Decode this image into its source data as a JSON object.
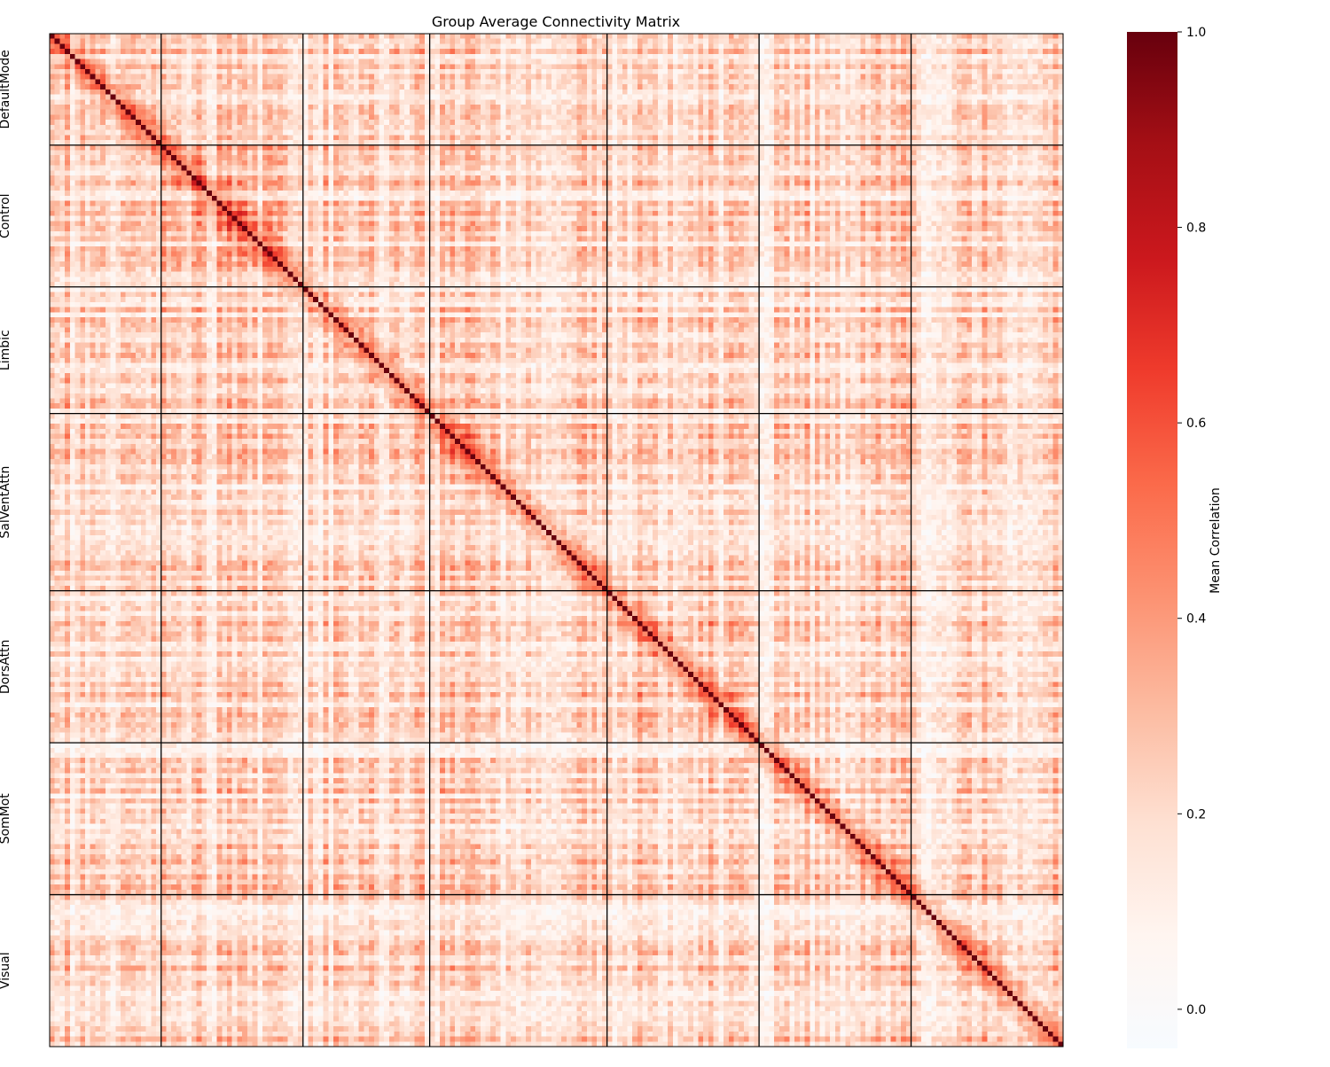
{
  "chart_data": {
    "type": "heatmap",
    "title": "Group Average Connectivity Matrix",
    "colorbar": {
      "label": "Mean Correlation",
      "vmin": -0.04,
      "vmax": 1.0,
      "ticks": [
        0.0,
        0.2,
        0.4,
        0.6,
        0.8,
        1.0
      ],
      "tick_labels": [
        "0.0",
        "0.2",
        "0.4",
        "0.6",
        "0.8",
        "1.0"
      ],
      "colormap": "Reds",
      "colormap_stops": [
        "#f7fbff",
        "#fff5f0",
        "#fee0d2",
        "#fcbba1",
        "#fc9272",
        "#fb6a4a",
        "#ef3b2c",
        "#cb181d",
        "#a50f15",
        "#67000d"
      ]
    },
    "matrix_size": 200,
    "diagonal_value": 1.0,
    "networks": [
      {
        "name": "DefaultMode",
        "start": 0,
        "count": 22,
        "within_mean": 0.35
      },
      {
        "name": "Control",
        "start": 22,
        "count": 28,
        "within_mean": 0.36
      },
      {
        "name": "Limbic",
        "start": 50,
        "count": 25,
        "within_mean": 0.27
      },
      {
        "name": "SalVentAttn",
        "start": 75,
        "count": 35,
        "within_mean": 0.33
      },
      {
        "name": "DorsAttn",
        "start": 110,
        "count": 30,
        "within_mean": 0.36
      },
      {
        "name": "SomMot",
        "start": 140,
        "count": 30,
        "within_mean": 0.3
      },
      {
        "name": "Visual",
        "start": 170,
        "count": 30,
        "within_mean": 0.32
      }
    ],
    "between_network_mean": 0.3,
    "separator_color": "#000000"
  }
}
